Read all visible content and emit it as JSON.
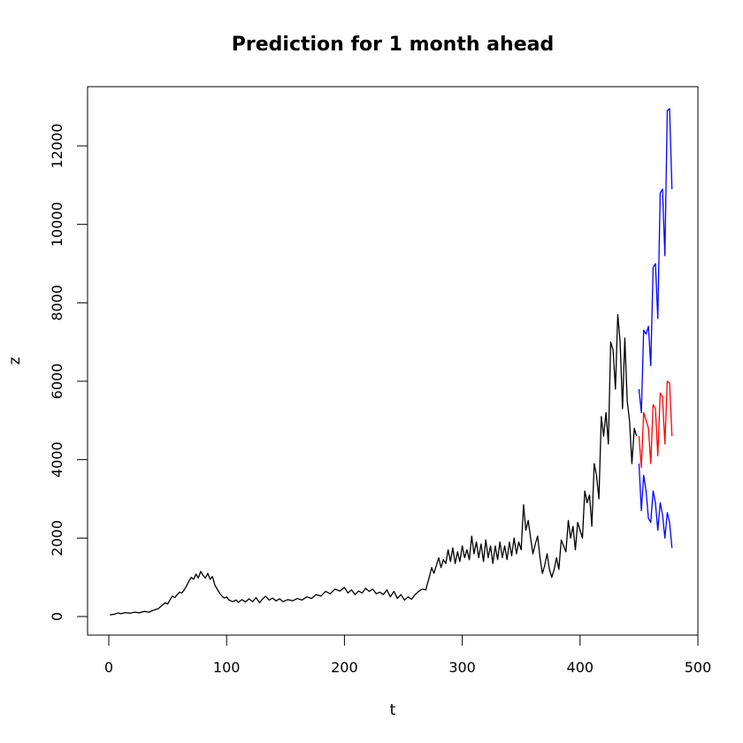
{
  "chart_data": {
    "type": "line",
    "title": "Prediction for 1 month ahead",
    "xlabel": "t",
    "ylabel": "z",
    "xlim": [
      0,
      500
    ],
    "ylim": [
      0,
      13000
    ],
    "x_ticks": [
      "0",
      "100",
      "200",
      "300",
      "400",
      "500"
    ],
    "y_ticks": [
      "0",
      "2000",
      "4000",
      "6000",
      "8000",
      "10000",
      "12000"
    ],
    "grid": false,
    "legend": "none",
    "series": [
      {
        "color": "#000000",
        "points": [
          [
            1,
            40
          ],
          [
            5,
            60
          ],
          [
            8,
            90
          ],
          [
            10,
            70
          ],
          [
            14,
            100
          ],
          [
            18,
            85
          ],
          [
            22,
            110
          ],
          [
            26,
            95
          ],
          [
            30,
            130
          ],
          [
            34,
            110
          ],
          [
            38,
            160
          ],
          [
            42,
            200
          ],
          [
            45,
            280
          ],
          [
            48,
            350
          ],
          [
            50,
            320
          ],
          [
            52,
            430
          ],
          [
            54,
            520
          ],
          [
            56,
            480
          ],
          [
            58,
            560
          ],
          [
            60,
            620
          ],
          [
            62,
            600
          ],
          [
            64,
            680
          ],
          [
            66,
            780
          ],
          [
            68,
            900
          ],
          [
            70,
            1000
          ],
          [
            72,
            950
          ],
          [
            74,
            1080
          ],
          [
            76,
            980
          ],
          [
            78,
            1150
          ],
          [
            80,
            1050
          ],
          [
            82,
            980
          ],
          [
            84,
            1100
          ],
          [
            86,
            950
          ],
          [
            88,
            1020
          ],
          [
            90,
            800
          ],
          [
            92,
            700
          ],
          [
            94,
            600
          ],
          [
            96,
            520
          ],
          [
            98,
            470
          ],
          [
            100,
            500
          ],
          [
            102,
            420
          ],
          [
            105,
            380
          ],
          [
            108,
            420
          ],
          [
            110,
            360
          ],
          [
            113,
            430
          ],
          [
            116,
            370
          ],
          [
            119,
            450
          ],
          [
            122,
            380
          ],
          [
            125,
            480
          ],
          [
            128,
            350
          ],
          [
            130,
            430
          ],
          [
            133,
            520
          ],
          [
            136,
            420
          ],
          [
            139,
            470
          ],
          [
            142,
            400
          ],
          [
            145,
            450
          ],
          [
            148,
            380
          ],
          [
            152,
            430
          ],
          [
            156,
            400
          ],
          [
            160,
            460
          ],
          [
            164,
            420
          ],
          [
            168,
            500
          ],
          [
            172,
            460
          ],
          [
            176,
            560
          ],
          [
            180,
            520
          ],
          [
            184,
            640
          ],
          [
            188,
            580
          ],
          [
            192,
            700
          ],
          [
            196,
            650
          ],
          [
            200,
            740
          ],
          [
            203,
            600
          ],
          [
            206,
            680
          ],
          [
            209,
            560
          ],
          [
            212,
            650
          ],
          [
            215,
            600
          ],
          [
            218,
            720
          ],
          [
            221,
            640
          ],
          [
            224,
            700
          ],
          [
            227,
            580
          ],
          [
            230,
            620
          ],
          [
            233,
            560
          ],
          [
            236,
            680
          ],
          [
            239,
            500
          ],
          [
            242,
            640
          ],
          [
            245,
            460
          ],
          [
            248,
            560
          ],
          [
            251,
            420
          ],
          [
            254,
            500
          ],
          [
            257,
            440
          ],
          [
            260,
            560
          ],
          [
            263,
            640
          ],
          [
            266,
            700
          ],
          [
            269,
            680
          ],
          [
            272,
            1000
          ],
          [
            274,
            1250
          ],
          [
            276,
            1100
          ],
          [
            278,
            1300
          ],
          [
            280,
            1500
          ],
          [
            282,
            1250
          ],
          [
            284,
            1450
          ],
          [
            286,
            1350
          ],
          [
            288,
            1700
          ],
          [
            290,
            1400
          ],
          [
            292,
            1750
          ],
          [
            294,
            1350
          ],
          [
            296,
            1650
          ],
          [
            298,
            1400
          ],
          [
            300,
            1800
          ],
          [
            302,
            1500
          ],
          [
            304,
            1700
          ],
          [
            306,
            1450
          ],
          [
            308,
            2050
          ],
          [
            310,
            1600
          ],
          [
            312,
            1900
          ],
          [
            314,
            1500
          ],
          [
            316,
            1850
          ],
          [
            318,
            1400
          ],
          [
            320,
            1950
          ],
          [
            322,
            1500
          ],
          [
            324,
            1800
          ],
          [
            326,
            1350
          ],
          [
            328,
            1800
          ],
          [
            330,
            1450
          ],
          [
            332,
            1900
          ],
          [
            334,
            1500
          ],
          [
            336,
            1800
          ],
          [
            338,
            1450
          ],
          [
            340,
            1900
          ],
          [
            342,
            1550
          ],
          [
            344,
            2000
          ],
          [
            346,
            1600
          ],
          [
            348,
            1900
          ],
          [
            350,
            1700
          ],
          [
            352,
            2850
          ],
          [
            354,
            2200
          ],
          [
            356,
            2450
          ],
          [
            358,
            2000
          ],
          [
            360,
            1600
          ],
          [
            362,
            1850
          ],
          [
            364,
            2050
          ],
          [
            366,
            1500
          ],
          [
            368,
            1100
          ],
          [
            370,
            1300
          ],
          [
            372,
            1600
          ],
          [
            374,
            1200
          ],
          [
            376,
            1000
          ],
          [
            378,
            1200
          ],
          [
            380,
            1500
          ],
          [
            382,
            1200
          ],
          [
            384,
            1950
          ],
          [
            386,
            1800
          ],
          [
            388,
            1650
          ],
          [
            390,
            2450
          ],
          [
            392,
            2000
          ],
          [
            394,
            2300
          ],
          [
            396,
            1700
          ],
          [
            398,
            2400
          ],
          [
            400,
            2200
          ],
          [
            402,
            2000
          ],
          [
            404,
            3200
          ],
          [
            406,
            2900
          ],
          [
            408,
            3100
          ],
          [
            410,
            2300
          ],
          [
            412,
            3900
          ],
          [
            414,
            3600
          ],
          [
            416,
            3000
          ],
          [
            418,
            5100
          ],
          [
            420,
            4600
          ],
          [
            422,
            5200
          ],
          [
            424,
            4400
          ],
          [
            426,
            7000
          ],
          [
            428,
            6800
          ],
          [
            430,
            5800
          ],
          [
            432,
            7700
          ],
          [
            434,
            7000
          ],
          [
            436,
            5300
          ],
          [
            438,
            7100
          ],
          [
            440,
            5500
          ],
          [
            442,
            5000
          ],
          [
            444,
            3900
          ],
          [
            446,
            4800
          ],
          [
            448,
            4600
          ]
        ]
      },
      {
        "color": "#0000ff",
        "points": [
          [
            450,
            5800
          ],
          [
            452,
            5200
          ],
          [
            454,
            7300
          ],
          [
            456,
            7200
          ],
          [
            458,
            7400
          ],
          [
            460,
            6400
          ],
          [
            462,
            8900
          ],
          [
            464,
            9000
          ],
          [
            466,
            7600
          ],
          [
            468,
            10800
          ],
          [
            470,
            10900
          ],
          [
            472,
            9200
          ],
          [
            474,
            12900
          ],
          [
            476,
            12950
          ],
          [
            478,
            10900
          ]
        ]
      },
      {
        "color": "#ff0000",
        "points": [
          [
            450,
            4600
          ],
          [
            452,
            3800
          ],
          [
            454,
            5200
          ],
          [
            456,
            5000
          ],
          [
            458,
            4800
          ],
          [
            460,
            3900
          ],
          [
            462,
            5400
          ],
          [
            464,
            5300
          ],
          [
            466,
            4100
          ],
          [
            468,
            5700
          ],
          [
            470,
            5600
          ],
          [
            472,
            4400
          ],
          [
            474,
            6000
          ],
          [
            476,
            5950
          ],
          [
            478,
            4600
          ]
        ]
      },
      {
        "color": "#0000ff",
        "points": [
          [
            450,
            3900
          ],
          [
            452,
            2700
          ],
          [
            454,
            3600
          ],
          [
            456,
            3200
          ],
          [
            458,
            2500
          ],
          [
            460,
            2400
          ],
          [
            462,
            3200
          ],
          [
            464,
            2900
          ],
          [
            466,
            2200
          ],
          [
            468,
            2900
          ],
          [
            470,
            2600
          ],
          [
            472,
            2000
          ],
          [
            474,
            2650
          ],
          [
            476,
            2400
          ],
          [
            478,
            1750
          ]
        ]
      }
    ]
  }
}
